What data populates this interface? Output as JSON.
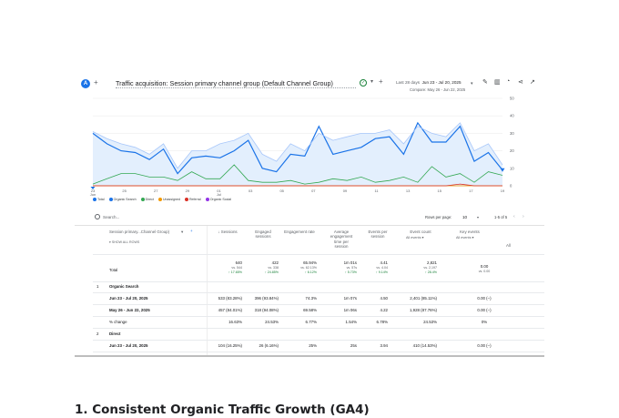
{
  "header": {
    "avatar": "A",
    "title": "Traffic acquisition: Session primary channel group (Default Channel Group)",
    "date_label": "Last 28 days",
    "date_range": "Jun 23 - Jul 20, 2025",
    "compare": "Compare: May 26 - Jun 22, 2025"
  },
  "chart_data": {
    "type": "line",
    "x_ticks": [
      "23\nJun",
      "25",
      "27",
      "29",
      "01\nJul",
      "03",
      "05",
      "07",
      "09",
      "11",
      "13",
      "15",
      "17",
      "19"
    ],
    "ylim": [
      0,
      50
    ],
    "y_ticks": [
      "0",
      "10",
      "20",
      "30",
      "40",
      "50"
    ],
    "series": [
      {
        "name": "Organic Search",
        "color": "#1a73e8",
        "values": [
          30,
          24,
          20,
          19,
          15,
          21,
          7,
          16,
          17,
          16,
          20,
          26,
          10,
          8,
          18,
          17,
          34,
          18,
          20,
          22,
          27,
          28,
          18,
          36,
          25,
          25,
          34,
          14,
          19,
          9
        ]
      },
      {
        "name": "Organic Search (previous period)",
        "color": "#a8c7fa",
        "values": [
          31,
          27,
          24,
          22,
          18,
          24,
          10,
          20,
          20,
          24,
          26,
          30,
          18,
          14,
          24,
          20,
          30,
          26,
          28,
          30,
          30,
          32,
          24,
          34,
          30,
          28,
          36,
          20,
          24,
          12
        ]
      },
      {
        "name": "Direct",
        "color": "#34a853",
        "values": [
          1,
          4,
          7,
          7,
          5,
          5,
          3,
          8,
          4,
          4,
          12,
          3,
          2,
          2,
          3,
          1,
          2,
          4,
          3,
          5,
          2,
          3,
          5,
          2,
          11,
          5,
          7,
          2,
          8,
          6
        ]
      },
      {
        "name": "Unassigned",
        "color": "#f29900",
        "values": [
          0,
          0,
          0,
          0,
          0,
          0,
          0,
          0,
          0,
          0,
          0,
          0,
          0,
          0,
          0,
          0,
          0,
          0,
          0,
          0,
          0,
          0,
          0,
          0,
          0,
          0,
          0,
          0,
          0,
          0
        ]
      },
      {
        "name": "Referral",
        "color": "#d93025",
        "values": [
          0,
          0,
          0,
          0,
          0,
          0,
          0,
          0,
          0,
          0,
          0,
          0,
          0,
          0,
          0,
          0,
          0,
          0,
          0,
          0,
          0,
          0,
          0,
          0,
          0,
          0,
          1,
          0,
          0,
          0
        ]
      }
    ]
  },
  "legend": [
    {
      "label": "Total",
      "color": "#1a73e8"
    },
    {
      "label": "Organic Search",
      "color": "#1a73e8"
    },
    {
      "label": "Direct",
      "color": "#34a853"
    },
    {
      "label": "Unassigned",
      "color": "#f29900"
    },
    {
      "label": "Referral",
      "color": "#d93025"
    },
    {
      "label": "Organic Social",
      "color": "#9334e6"
    }
  ],
  "table": {
    "search_placeholder": "Search...",
    "rows_per_page_label": "Rows per page:",
    "rows_per_page": "10",
    "page_count": "1-5 of 5",
    "dimension_header": "Session primary...Channel Group)",
    "show_all_rows": "SHOW ALL ROWS",
    "all": "All",
    "col_sessions": "Sessions",
    "col_engaged": "Engaged sessions",
    "col_eng_rate": "Engagement rate",
    "col_avg_time": "Average engagement time per session",
    "col_events_per": "Events per session",
    "col_event_count": "Event count",
    "col_event_count_sub": "All events",
    "col_key_events": "Key events",
    "col_key_events_sub": "All events",
    "total_label": "Total",
    "total": {
      "sessions": "640",
      "sessions_vs": "vs. 544",
      "sessions_ch": "↑ 17.65%",
      "engaged": "422",
      "engaged_vs": "vs. 338",
      "engaged_ch": "↑ 24.85%",
      "eng_rate": "65.94%",
      "eng_rate_vs": "vs. 62.13%",
      "eng_rate_ch": "↑ 6.12%",
      "avg_time": "1m 01s",
      "avg_time_vs": "vs. 57s",
      "avg_time_ch": "↑ 5.73%",
      "events_per": "4.41",
      "events_per_vs": "vs. 4.04",
      "events_per_ch": "↑ 9.14%",
      "event_count": "2,821",
      "event_count_vs": "vs. 2,197",
      "event_count_ch": "↑ 28.4%",
      "key_events": "0.00",
      "key_events_vs": "vs. 0.00"
    },
    "rows": [
      {
        "num": "1",
        "label": "Organic Search"
      },
      {
        "label": "Jun 23 - Jul 20, 2025",
        "sessions": "533 (83.28%)",
        "engaged": "396 (93.84%)",
        "eng_rate": "74.3%",
        "avg_time": "1m 07s",
        "events_per": "4.50",
        "event_count": "2,401 (85.11%)",
        "key_events": "0.00 (–)"
      },
      {
        "label": "May 26 - Jun 22, 2025",
        "sessions": "457 (84.01%)",
        "engaged": "318 (94.08%)",
        "eng_rate": "69.58%",
        "avg_time": "1m 06s",
        "events_per": "4.22",
        "event_count": "1,928 (87.76%)",
        "key_events": "0.00 (–)"
      },
      {
        "label": "% change",
        "sessions": "16.63%",
        "engaged": "24.53%",
        "eng_rate": "6.77%",
        "avg_time": "1.54%",
        "events_per": "6.78%",
        "event_count": "24.53%",
        "key_events": "0%"
      },
      {
        "num": "2",
        "label": "Direct"
      },
      {
        "label": "Jun 23 - Jul 20, 2025",
        "sessions": "104 (16.25%)",
        "engaged": "26 (6.16%)",
        "eng_rate": "25%",
        "avg_time": "25s",
        "events_per": "3.94",
        "event_count": "410 (14.53%)",
        "key_events": "0.00 (–)"
      }
    ]
  },
  "caption": "1. Consistent Organic Traffic Growth (GA4)"
}
